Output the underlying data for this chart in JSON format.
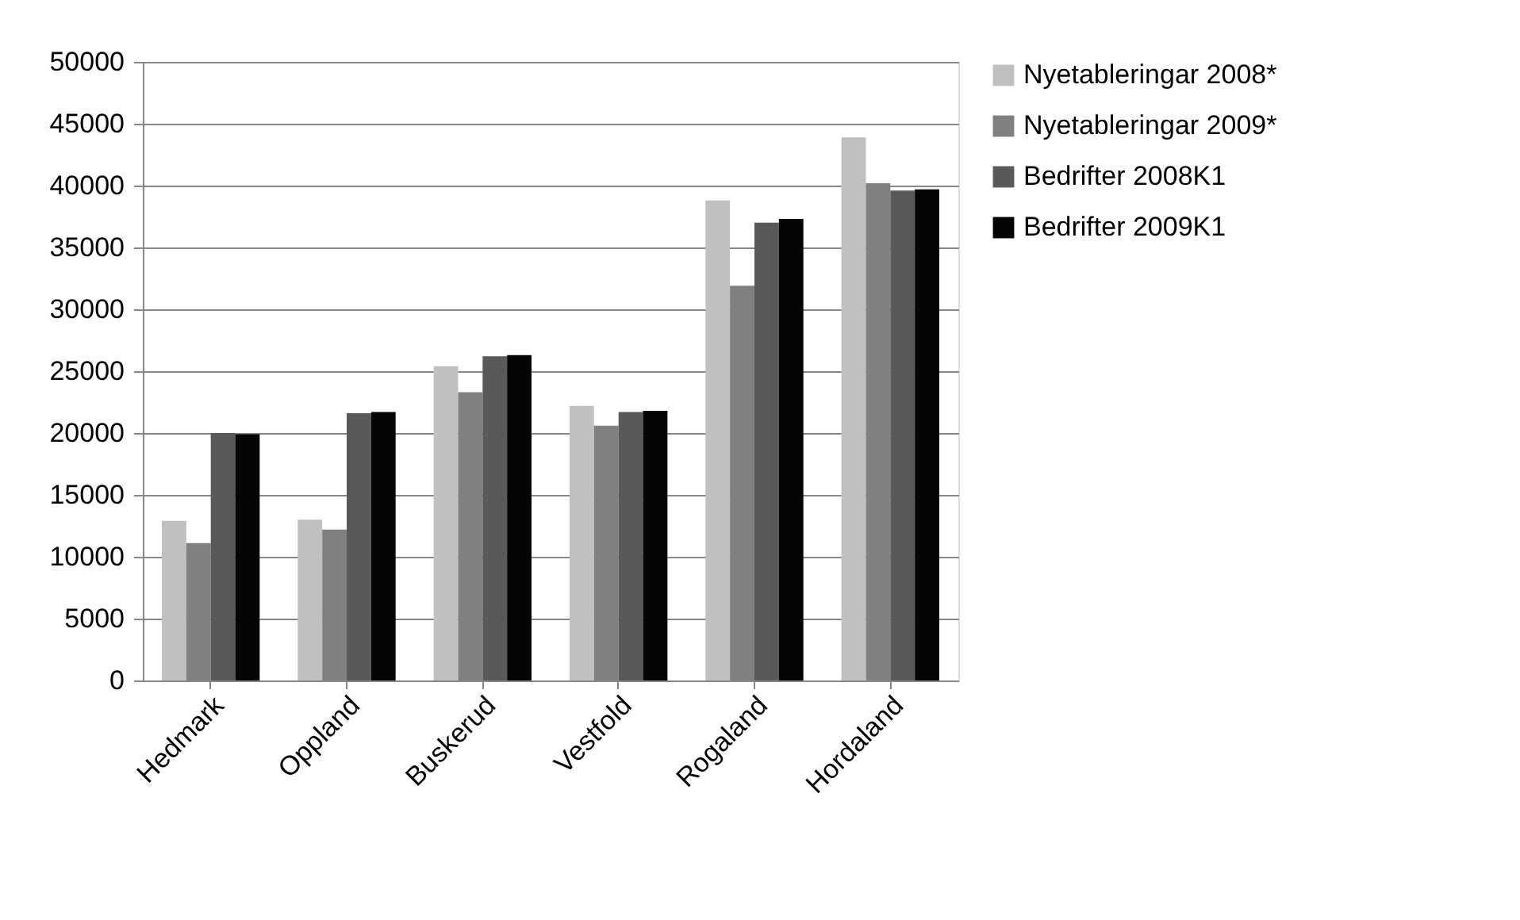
{
  "chart_data": {
    "type": "bar",
    "categories": [
      "Hedmark",
      "Oppland",
      "Buskerud",
      "Vestfold",
      "Rogaland",
      "Hordaland"
    ],
    "series": [
      {
        "name": "Nyetableringar 2008*",
        "color": "#c0c0c0",
        "values": [
          12900,
          13000,
          25400,
          22200,
          38800,
          43900
        ]
      },
      {
        "name": "Nyetableringar 2009*",
        "color": "#808080",
        "values": [
          11100,
          12200,
          23300,
          20600,
          31900,
          40200
        ]
      },
      {
        "name": "Bedrifter 2008K1",
        "color": "#595959",
        "values": [
          20000,
          21600,
          26200,
          21700,
          37000,
          39600
        ]
      },
      {
        "name": "Bedrifter 2009K1",
        "color": "#050505",
        "values": [
          19900,
          21700,
          26300,
          21800,
          37300,
          39700
        ]
      }
    ],
    "ylim": [
      0,
      50000
    ],
    "yticks": [
      0,
      5000,
      10000,
      15000,
      20000,
      25000,
      30000,
      35000,
      40000,
      45000,
      50000
    ],
    "grid": "y",
    "legend": "right"
  }
}
